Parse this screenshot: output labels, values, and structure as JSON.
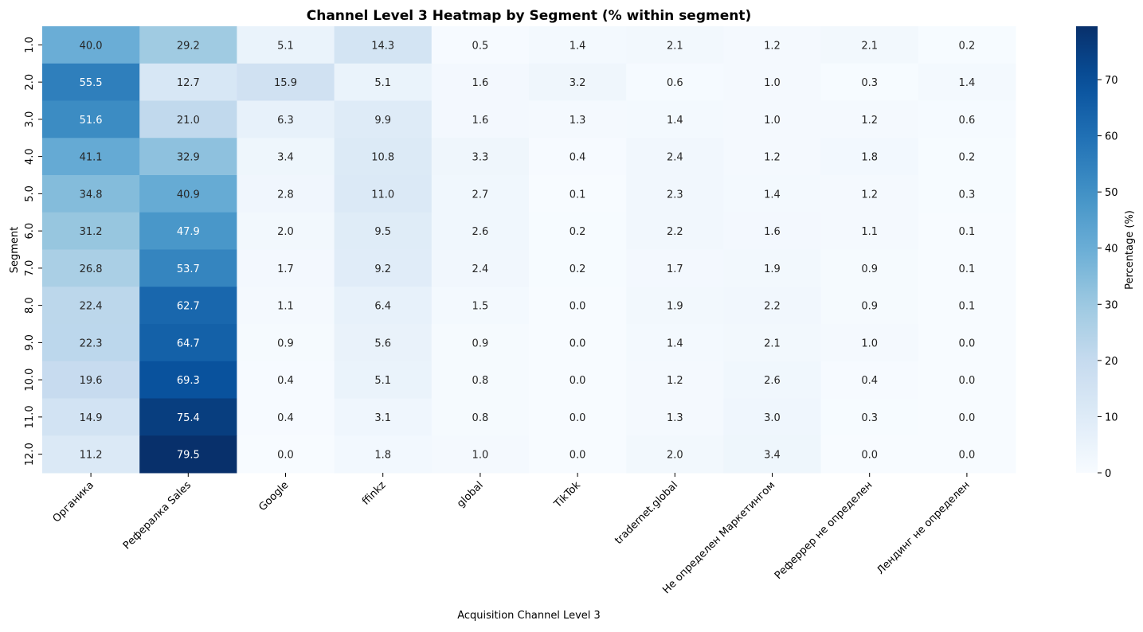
{
  "chart_data": {
    "type": "heatmap",
    "title": "Channel Level 3 Heatmap by Segment (% within segment)",
    "xlabel": "Acquisition Channel Level 3",
    "ylabel": "Segment",
    "colorbar_label": "Percentage (%)",
    "colormap": "Blues",
    "color_range": [
      0,
      79.5
    ],
    "colorbar_ticks": [
      0,
      10,
      20,
      30,
      40,
      50,
      60,
      70
    ],
    "x_categories": [
      "Органика",
      "Рефералка Sales",
      "Google",
      "ffinkz",
      "global",
      "TikTok",
      "tradernet.global",
      "Не определен Маркетингом",
      "Реферрер не определен",
      "Лендинг не определен"
    ],
    "y_categories": [
      "1.0",
      "2.0",
      "3.0",
      "4.0",
      "5.0",
      "6.0",
      "7.0",
      "8.0",
      "9.0",
      "10.0",
      "11.0",
      "12.0"
    ],
    "values": [
      [
        40.0,
        29.2,
        5.1,
        14.3,
        0.5,
        1.4,
        2.1,
        1.2,
        2.1,
        0.2
      ],
      [
        55.5,
        12.7,
        15.9,
        5.1,
        1.6,
        3.2,
        0.6,
        1.0,
        0.3,
        1.4
      ],
      [
        51.6,
        21.0,
        6.3,
        9.9,
        1.6,
        1.3,
        1.4,
        1.0,
        1.2,
        0.6
      ],
      [
        41.1,
        32.9,
        3.4,
        10.8,
        3.3,
        0.4,
        2.4,
        1.2,
        1.8,
        0.2
      ],
      [
        34.8,
        40.9,
        2.8,
        11.0,
        2.7,
        0.1,
        2.3,
        1.4,
        1.2,
        0.3
      ],
      [
        31.2,
        47.9,
        2.0,
        9.5,
        2.6,
        0.2,
        2.2,
        1.6,
        1.1,
        0.1
      ],
      [
        26.8,
        53.7,
        1.7,
        9.2,
        2.4,
        0.2,
        1.7,
        1.9,
        0.9,
        0.1
      ],
      [
        22.4,
        62.7,
        1.1,
        6.4,
        1.5,
        0.0,
        1.9,
        2.2,
        0.9,
        0.1
      ],
      [
        22.3,
        64.7,
        0.9,
        5.6,
        0.9,
        0.0,
        1.4,
        2.1,
        1.0,
        0.0
      ],
      [
        19.6,
        69.3,
        0.4,
        5.1,
        0.8,
        0.0,
        1.2,
        2.6,
        0.4,
        0.0
      ],
      [
        14.9,
        75.4,
        0.4,
        3.1,
        0.8,
        0.0,
        1.3,
        3.0,
        0.3,
        0.0
      ],
      [
        11.2,
        79.5,
        0.0,
        1.8,
        1.0,
        0.0,
        2.0,
        3.4,
        0.0,
        0.0
      ]
    ]
  }
}
